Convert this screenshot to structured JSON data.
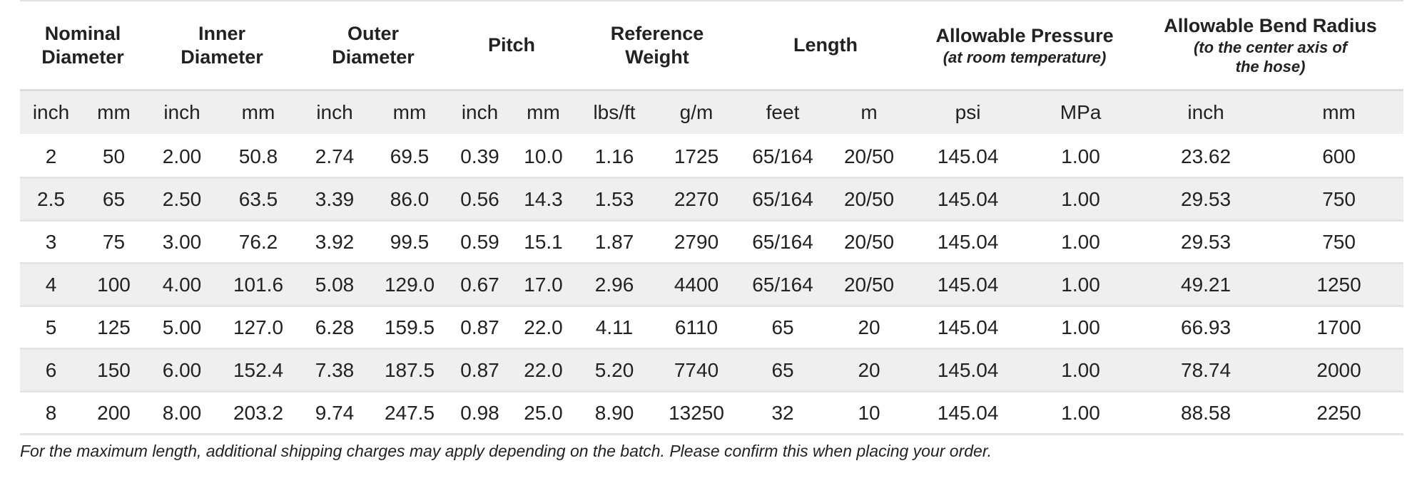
{
  "header": {
    "groups": [
      {
        "title": "Nominal Diameter"
      },
      {
        "title": "Inner Diameter"
      },
      {
        "title": "Outer Diameter"
      },
      {
        "title": "Pitch"
      },
      {
        "title": "Reference Weight"
      },
      {
        "title": "Length"
      },
      {
        "title": "Allowable Pressure",
        "subtitle": "(at room temperature)"
      },
      {
        "title": "Allowable Bend Radius",
        "subtitle": "(to the center axis of the hose)"
      }
    ],
    "units": [
      "inch",
      "mm",
      "inch",
      "mm",
      "inch",
      "mm",
      "inch",
      "mm",
      "lbs/ft",
      "g/m",
      "feet",
      "m",
      "psi",
      "MPa",
      "inch",
      "mm"
    ]
  },
  "table": {
    "rows": [
      [
        "2",
        "50",
        "2.00",
        "50.8",
        "2.74",
        "69.5",
        "0.39",
        "10.0",
        "1.16",
        "1725",
        "65/164",
        "20/50",
        "145.04",
        "1.00",
        "23.62",
        "600"
      ],
      [
        "2.5",
        "65",
        "2.50",
        "63.5",
        "3.39",
        "86.0",
        "0.56",
        "14.3",
        "1.53",
        "2270",
        "65/164",
        "20/50",
        "145.04",
        "1.00",
        "29.53",
        "750"
      ],
      [
        "3",
        "75",
        "3.00",
        "76.2",
        "3.92",
        "99.5",
        "0.59",
        "15.1",
        "1.87",
        "2790",
        "65/164",
        "20/50",
        "145.04",
        "1.00",
        "29.53",
        "750"
      ],
      [
        "4",
        "100",
        "4.00",
        "101.6",
        "5.08",
        "129.0",
        "0.67",
        "17.0",
        "2.96",
        "4400",
        "65/164",
        "20/50",
        "145.04",
        "1.00",
        "49.21",
        "1250"
      ],
      [
        "5",
        "125",
        "5.00",
        "127.0",
        "6.28",
        "159.5",
        "0.87",
        "22.0",
        "4.11",
        "6110",
        "65",
        "20",
        "145.04",
        "1.00",
        "66.93",
        "1700"
      ],
      [
        "6",
        "150",
        "6.00",
        "152.4",
        "7.38",
        "187.5",
        "0.87",
        "22.0",
        "5.20",
        "7740",
        "65",
        "20",
        "145.04",
        "1.00",
        "78.74",
        "2000"
      ],
      [
        "8",
        "200",
        "8.00",
        "203.2",
        "9.74",
        "247.5",
        "0.98",
        "25.0",
        "8.90",
        "13250",
        "32",
        "10",
        "145.04",
        "1.00",
        "88.58",
        "2250"
      ]
    ]
  },
  "note": "For the maximum length, additional shipping charges may apply depending on the batch. Please confirm this when placing your order."
}
